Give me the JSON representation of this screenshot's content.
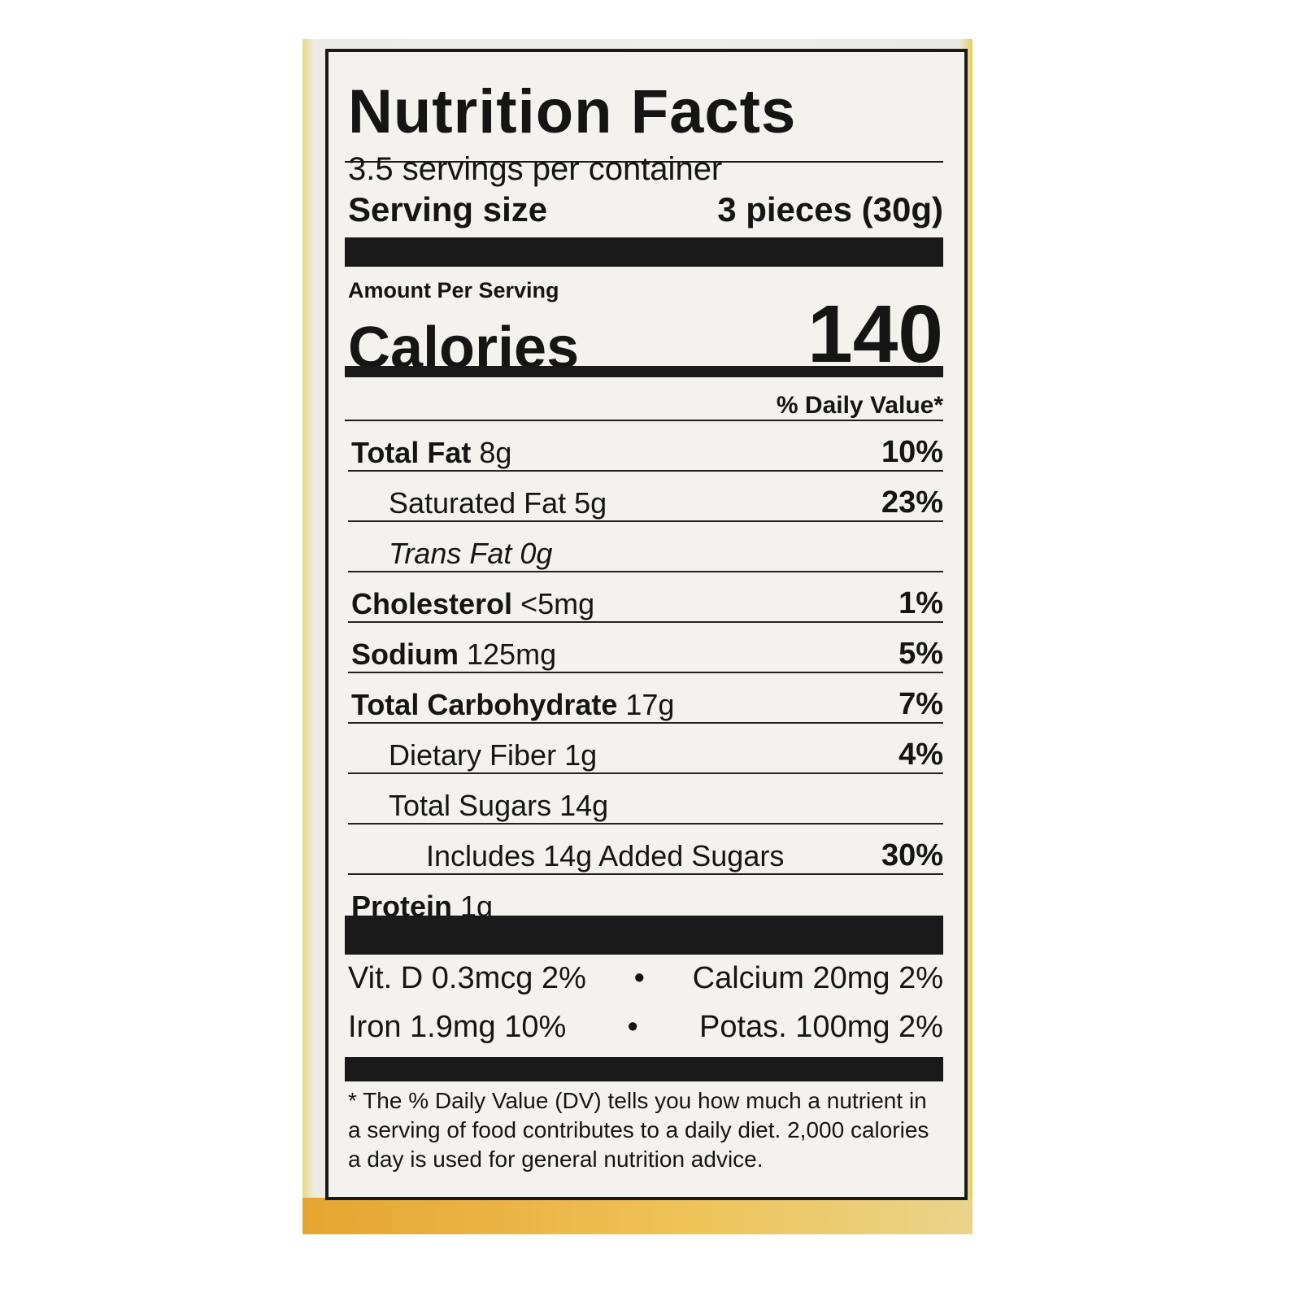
{
  "label": {
    "title": "Nutrition Facts",
    "servings_per_container": "3.5 servings per container",
    "serving_size_label": "Serving size",
    "serving_size_value": "3 pieces (30g)",
    "amount_per_serving": "Amount Per Serving",
    "calories_label": "Calories",
    "calories_value": "140",
    "daily_value_header": "% Daily Value*",
    "nutrients": [
      {
        "name": "Total Fat",
        "amount": "8g",
        "dv": "10%",
        "bold": true,
        "indent": 0
      },
      {
        "name": "Saturated Fat",
        "amount": "5g",
        "dv": "23%",
        "bold": false,
        "indent": 1
      },
      {
        "name": "Trans Fat",
        "amount": "0g",
        "dv": "",
        "bold": false,
        "indent": 1,
        "italic": true
      },
      {
        "name": "Cholesterol",
        "amount": "<5mg",
        "dv": "1%",
        "bold": true,
        "indent": 0
      },
      {
        "name": "Sodium",
        "amount": "125mg",
        "dv": "5%",
        "bold": true,
        "indent": 0
      },
      {
        "name": "Total Carbohydrate",
        "amount": "17g",
        "dv": "7%",
        "bold": true,
        "indent": 0
      },
      {
        "name": "Dietary Fiber",
        "amount": "1g",
        "dv": "4%",
        "bold": false,
        "indent": 1
      },
      {
        "name": "Total Sugars",
        "amount": "14g",
        "dv": "",
        "bold": false,
        "indent": 1
      },
      {
        "name": "Includes 14g Added Sugars",
        "amount": "",
        "dv": "30%",
        "bold": false,
        "indent": 2
      },
      {
        "name": "Protein",
        "amount": "1g",
        "dv": "",
        "bold": true,
        "indent": 0
      }
    ],
    "vitamins": [
      [
        "Vit. D 0.3mcg 2%",
        "•",
        "Calcium 20mg 2%"
      ],
      [
        "Iron 1.9mg 10%",
        "•",
        "Potas. 100mg 2%"
      ]
    ],
    "footnote": "* The % Daily Value (DV) tells you how much a nutrient in a serving of food contributes to a daily diet. 2,000 calories a day is used for general nutrition advice."
  }
}
